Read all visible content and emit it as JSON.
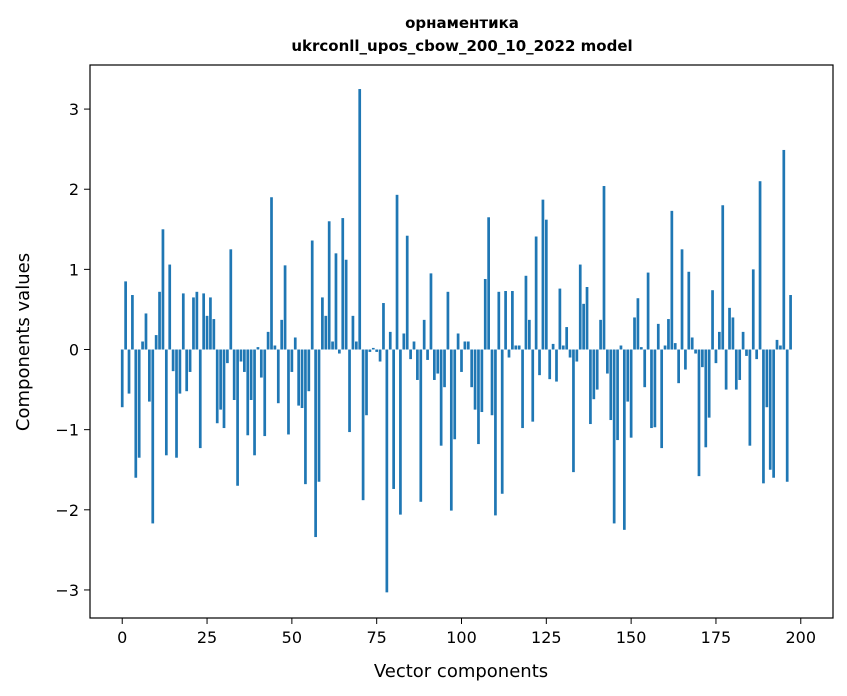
{
  "chart_data": {
    "type": "bar",
    "title": "орнаментика",
    "subtitle": "ukrconll_upos_cbow_200_10_2022 model",
    "xlabel": "Vector components",
    "ylabel": "Components values",
    "xlim": [
      -9.5,
      209.5
    ],
    "ylim": [
      -3.35,
      3.55
    ],
    "xticks": [
      0,
      25,
      50,
      75,
      100,
      125,
      150,
      175,
      200
    ],
    "yticks": [
      -3,
      -2,
      -1,
      0,
      1,
      2,
      3
    ],
    "bar_color": "#1f77b4",
    "grid": false,
    "values": [
      -0.72,
      0.85,
      -0.55,
      0.68,
      -1.6,
      -1.35,
      0.1,
      0.45,
      -0.65,
      -2.17,
      0.18,
      0.72,
      1.5,
      -1.32,
      1.06,
      -0.27,
      -1.35,
      -0.55,
      0.7,
      -0.52,
      -0.28,
      0.65,
      0.72,
      -1.23,
      0.7,
      0.42,
      0.65,
      0.38,
      -0.92,
      -0.75,
      -0.98,
      -0.17,
      1.25,
      -0.63,
      -1.7,
      -0.15,
      -0.28,
      -1.07,
      -0.63,
      -1.32,
      0.03,
      -0.35,
      -1.08,
      0.22,
      1.9,
      0.05,
      -0.67,
      0.37,
      1.05,
      -1.06,
      -0.28,
      0.15,
      -0.7,
      -0.73,
      -1.68,
      -0.52,
      1.36,
      -2.34,
      -1.65,
      0.65,
      0.42,
      1.6,
      0.1,
      1.2,
      -0.05,
      1.64,
      1.12,
      -1.03,
      0.42,
      0.1,
      3.25,
      -1.88,
      -0.82,
      -0.03,
      0.02,
      -0.03,
      -0.15,
      0.58,
      -3.03,
      0.22,
      -1.74,
      1.93,
      -2.06,
      0.2,
      1.42,
      -0.12,
      0.1,
      -0.38,
      -1.9,
      0.37,
      -0.13,
      0.95,
      -0.38,
      -0.3,
      -1.2,
      -0.47,
      0.72,
      -2.01,
      -1.12,
      0.2,
      -0.28,
      0.1,
      0.1,
      -0.47,
      -0.75,
      -1.18,
      -0.78,
      0.88,
      1.65,
      -0.82,
      -2.07,
      0.72,
      -1.8,
      0.73,
      -0.1,
      0.73,
      0.05,
      0.05,
      -0.98,
      0.92,
      0.37,
      -0.9,
      1.41,
      -0.32,
      1.87,
      1.62,
      -0.37,
      0.07,
      -0.4,
      0.76,
      0.05,
      0.28,
      -0.1,
      -1.53,
      -0.15,
      1.06,
      0.57,
      0.78,
      -0.93,
      -0.62,
      -0.5,
      0.37,
      2.04,
      -0.3,
      -0.88,
      -2.17,
      -1.13,
      0.05,
      -2.25,
      -0.65,
      -1.1,
      0.4,
      0.64,
      0.03,
      -0.47,
      0.96,
      -0.98,
      -0.97,
      0.32,
      -1.23,
      0.05,
      0.38,
      1.73,
      0.08,
      -0.42,
      1.25,
      -0.25,
      0.97,
      0.15,
      -0.05,
      -1.58,
      -0.22,
      -1.22,
      -0.85,
      0.74,
      -0.17,
      0.22,
      1.8,
      -0.5,
      0.52,
      0.4,
      -0.5,
      -0.38,
      0.22,
      -0.08,
      -1.2,
      1.0,
      -0.12,
      2.1,
      -1.67,
      -0.72,
      -1.5,
      -1.6,
      0.12,
      0.05,
      2.49,
      -1.65,
      0.68
    ]
  }
}
